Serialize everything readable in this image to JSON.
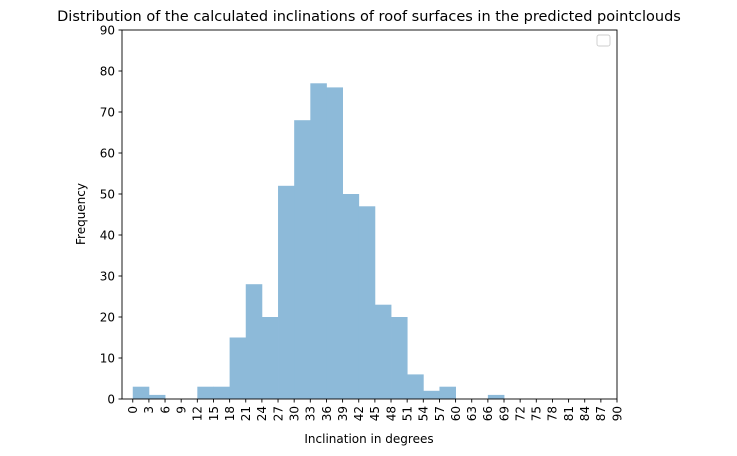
{
  "chart_data": {
    "type": "bar",
    "title": "Distribution of the calculated inclinations of roof surfaces in the predicted pointclouds",
    "xlabel": "Inclination in degrees",
    "ylabel": "Frequency",
    "bin_edges": [
      0,
      3,
      6,
      9,
      12,
      15,
      18,
      21,
      24,
      27,
      30,
      33,
      36,
      39,
      42,
      45,
      48,
      51,
      54,
      57,
      60,
      63,
      66,
      69,
      72,
      75,
      78,
      81,
      84,
      87,
      90
    ],
    "values": [
      3,
      1,
      0,
      0,
      3,
      3,
      15,
      28,
      20,
      52,
      68,
      77,
      76,
      50,
      47,
      23,
      20,
      6,
      2,
      3,
      0,
      0,
      1,
      0,
      0,
      0,
      0,
      0,
      0,
      0
    ],
    "xlim": [
      -2,
      90
    ],
    "ylim": [
      0,
      90
    ],
    "x_ticks": [
      0,
      3,
      6,
      9,
      12,
      15,
      18,
      21,
      24,
      27,
      30,
      33,
      36,
      39,
      42,
      45,
      48,
      51,
      54,
      57,
      60,
      63,
      66,
      69,
      72,
      75,
      78,
      81,
      84,
      87,
      90
    ],
    "y_ticks": [
      0,
      10,
      20,
      30,
      40,
      50,
      60,
      70,
      80,
      90
    ],
    "bar_color": "#8dbad9",
    "grid": false,
    "legend": {
      "placement": "upper-right",
      "entries": []
    }
  }
}
